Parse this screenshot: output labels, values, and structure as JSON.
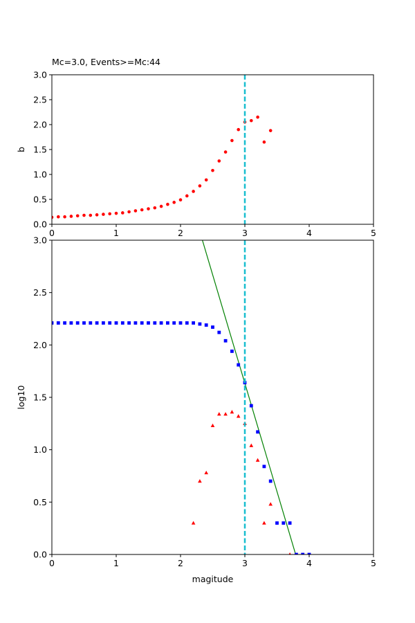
{
  "chart_data": [
    {
      "type": "scatter",
      "title": "Mc=3.0, Events>=Mc:44",
      "xlabel": "",
      "ylabel": "b",
      "xlim": [
        0,
        5
      ],
      "ylim": [
        0,
        3.0
      ],
      "xticks": [
        "0",
        "1",
        "2",
        "3",
        "4",
        "5"
      ],
      "yticks": [
        "0.0",
        "0.5",
        "1.0",
        "1.5",
        "2.0",
        "2.5",
        "3.0"
      ],
      "grid": false,
      "vline": {
        "x": 3.0,
        "color": "#17becf",
        "style": "dashed"
      },
      "series": [
        {
          "marker": "circle",
          "color": "#ff0000",
          "x": [
            0.0,
            0.1,
            0.2,
            0.3,
            0.4,
            0.5,
            0.6,
            0.7,
            0.8,
            0.9,
            1.0,
            1.1,
            1.2,
            1.3,
            1.4,
            1.5,
            1.6,
            1.7,
            1.8,
            1.9,
            2.0,
            2.1,
            2.2,
            2.3,
            2.4,
            2.5,
            2.6,
            2.7,
            2.8,
            2.9,
            3.0,
            3.1,
            3.2,
            3.3,
            3.4
          ],
          "y": [
            0.14,
            0.15,
            0.15,
            0.16,
            0.17,
            0.18,
            0.18,
            0.19,
            0.2,
            0.21,
            0.22,
            0.23,
            0.25,
            0.27,
            0.29,
            0.31,
            0.33,
            0.36,
            0.4,
            0.44,
            0.49,
            0.57,
            0.66,
            0.77,
            0.89,
            1.08,
            1.27,
            1.45,
            1.68,
            1.9,
            2.05,
            2.08,
            2.15,
            1.65,
            1.88
          ]
        }
      ]
    },
    {
      "type": "scatter",
      "title": "",
      "xlabel": "magitude",
      "ylabel": "log10",
      "xlim": [
        0,
        5
      ],
      "ylim": [
        0,
        3.0
      ],
      "xticks": [
        "0",
        "1",
        "2",
        "3",
        "4",
        "5"
      ],
      "yticks": [
        "0.0",
        "0.5",
        "1.0",
        "1.5",
        "2.0",
        "2.5",
        "3.0"
      ],
      "grid": false,
      "vline": {
        "x": 3.0,
        "color": "#17becf",
        "style": "dashed"
      },
      "fit_line": {
        "color": "#008000",
        "x": [
          2.34,
          3.79
        ],
        "y": [
          3.0,
          0.0
        ]
      },
      "series": [
        {
          "marker": "square",
          "color": "#0000ff",
          "x": [
            0.0,
            0.1,
            0.2,
            0.3,
            0.4,
            0.5,
            0.6,
            0.7,
            0.8,
            0.9,
            1.0,
            1.1,
            1.2,
            1.3,
            1.4,
            1.5,
            1.6,
            1.7,
            1.8,
            1.9,
            2.0,
            2.1,
            2.2,
            2.3,
            2.4,
            2.5,
            2.6,
            2.7,
            2.8,
            2.9,
            3.0,
            3.1,
            3.2,
            3.3,
            3.4,
            3.5,
            3.6,
            3.7,
            3.8,
            3.9,
            4.0
          ],
          "y": [
            2.21,
            2.21,
            2.21,
            2.21,
            2.21,
            2.21,
            2.21,
            2.21,
            2.21,
            2.21,
            2.21,
            2.21,
            2.21,
            2.21,
            2.21,
            2.21,
            2.21,
            2.21,
            2.21,
            2.21,
            2.21,
            2.21,
            2.21,
            2.2,
            2.19,
            2.17,
            2.12,
            2.04,
            1.94,
            1.81,
            1.64,
            1.42,
            1.17,
            0.84,
            0.7,
            0.3,
            0.3,
            0.3,
            0.0,
            0.0,
            0.0
          ]
        },
        {
          "marker": "triangle",
          "color": "#ff0000",
          "x": [
            2.2,
            2.3,
            2.4,
            2.5,
            2.6,
            2.7,
            2.8,
            2.9,
            3.0,
            3.1,
            3.2,
            3.3,
            3.4,
            3.7
          ],
          "y": [
            0.3,
            0.7,
            0.78,
            1.23,
            1.34,
            1.34,
            1.36,
            1.32,
            1.25,
            1.04,
            0.9,
            0.3,
            0.48,
            0.0
          ]
        }
      ]
    }
  ]
}
